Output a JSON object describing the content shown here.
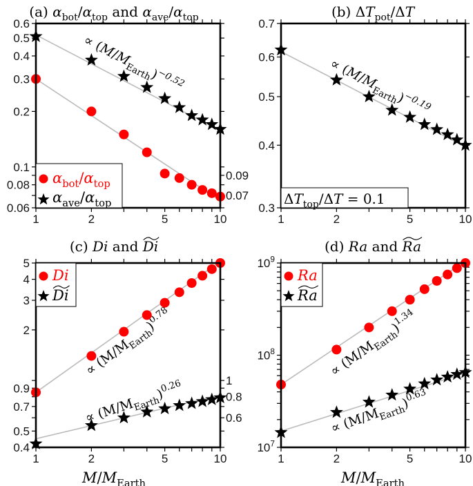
{
  "chart_data": [
    {
      "panel": "a",
      "type": "scatter",
      "xscale": "log",
      "yscale": "log",
      "title": [
        {
          "t": "(a) "
        },
        {
          "t": "α",
          "i": true
        },
        {
          "t": "bot",
          "s": "sub"
        },
        {
          "t": "/"
        },
        {
          "t": "α",
          "i": true
        },
        {
          "t": "top",
          "s": "sub"
        },
        {
          "t": " and "
        },
        {
          "t": "α",
          "i": true
        },
        {
          "t": "ave",
          "s": "sub"
        },
        {
          "t": "/"
        },
        {
          "t": "α",
          "i": true
        },
        {
          "t": "top",
          "s": "sub"
        }
      ],
      "xlabel": [],
      "xlim": [
        1,
        10
      ],
      "ylim": [
        0.06,
        0.6
      ],
      "xticks": [
        1,
        2,
        5,
        10
      ],
      "xtick_labels": [
        "1",
        "2",
        "5",
        "10"
      ],
      "minor_xticks": [
        3,
        4,
        6,
        7,
        8,
        9
      ],
      "yticks": [
        0.06,
        0.07,
        0.08,
        0.09,
        0.1,
        0.2,
        0.3,
        0.4,
        0.5,
        0.6
      ],
      "ytick_labels": [
        "0.06",
        "0.07",
        "0.08",
        "0.09",
        "0.1",
        "0.2",
        "0.3",
        "0.4",
        "0.5",
        "0.6"
      ],
      "minor_yticks": [],
      "x": [
        1,
        2,
        3,
        4,
        5,
        6,
        7,
        8,
        9,
        10
      ],
      "series": [
        {
          "name": [
            {
              "t": "α",
              "i": true
            },
            {
              "t": "bot",
              "s": "sub"
            },
            {
              "t": "/"
            },
            {
              "t": "α",
              "i": true
            },
            {
              "t": "top",
              "s": "sub"
            }
          ],
          "marker": "circle",
          "color": "#ff0000",
          "values": [
            0.3,
            0.2,
            0.15,
            0.12,
            0.092,
            0.087,
            0.08,
            0.075,
            0.072,
            0.069
          ]
        },
        {
          "name": [
            {
              "t": "α",
              "i": true
            },
            {
              "t": "ave",
              "s": "sub"
            },
            {
              "t": "/"
            },
            {
              "t": "α",
              "i": true
            },
            {
              "t": "top",
              "s": "sub"
            }
          ],
          "marker": "star",
          "color": "#000000",
          "values": [
            0.51,
            0.38,
            0.31,
            0.27,
            0.235,
            0.21,
            0.19,
            0.18,
            0.17,
            0.16
          ]
        }
      ],
      "fits": [
        {
          "coef": 0.3,
          "exponent": -0.66,
          "label": []
        },
        {
          "coef": 0.52,
          "exponent": -0.52,
          "label": [
            {
              "t": "∝ ("
            },
            {
              "t": "M",
              "i": true
            },
            {
              "t": "/"
            },
            {
              "t": "M",
              "i": true
            },
            {
              "t": "Earth",
              "s": "sub"
            },
            {
              "t": ")"
            },
            {
              "t": "−0.52",
              "s": "sup",
              "i": true
            }
          ]
        }
      ],
      "legend": {
        "placement": "bottom-left"
      }
    },
    {
      "panel": "b",
      "type": "scatter",
      "xscale": "log",
      "yscale": "log",
      "title": [
        {
          "t": "(b) Δ"
        },
        {
          "t": "T",
          "i": true
        },
        {
          "t": "pot",
          "s": "sub"
        },
        {
          "t": "/Δ"
        },
        {
          "t": "T",
          "i": true
        }
      ],
      "xlabel": [],
      "xlim": [
        1,
        10
      ],
      "ylim": [
        0.3,
        0.7
      ],
      "xticks": [
        1,
        2,
        5,
        10
      ],
      "xtick_labels": [
        "1",
        "2",
        "5",
        "10"
      ],
      "minor_xticks": [
        3,
        4,
        6,
        7,
        8,
        9
      ],
      "yticks": [
        0.3,
        0.4,
        0.5,
        0.6,
        0.7
      ],
      "ytick_labels": [
        "0.3",
        "0.4",
        "0.5",
        "0.6",
        "0.7"
      ],
      "minor_yticks": [],
      "x": [
        1,
        2,
        3,
        4,
        5,
        6,
        7,
        8,
        9,
        10
      ],
      "series": [
        {
          "name": [],
          "marker": "star",
          "color": "#000000",
          "values": [
            0.62,
            0.54,
            0.5,
            0.47,
            0.455,
            0.44,
            0.43,
            0.42,
            0.41,
            0.4
          ]
        }
      ],
      "fits": [
        {
          "coef": 0.615,
          "exponent": -0.19,
          "label": [
            {
              "t": "∝ ("
            },
            {
              "t": "M",
              "i": true
            },
            {
              "t": "/"
            },
            {
              "t": "M",
              "i": true
            },
            {
              "t": "Earth",
              "s": "sub"
            },
            {
              "t": ")"
            },
            {
              "t": "−0.19",
              "s": "sup",
              "i": true
            }
          ]
        }
      ],
      "note": [
        {
          "t": "Δ"
        },
        {
          "t": "T",
          "i": true
        },
        {
          "t": "top",
          "s": "sub"
        },
        {
          "t": "/Δ"
        },
        {
          "t": "T",
          "i": true
        },
        {
          "t": " = 0.1"
        }
      ],
      "legend": {
        "placement": "bottom-left"
      }
    },
    {
      "panel": "c",
      "type": "scatter",
      "xscale": "log",
      "yscale": "log",
      "title": [
        {
          "t": "(c) "
        },
        {
          "t": "Di",
          "i": true
        },
        {
          "t": " and "
        },
        {
          "t": "Di",
          "i": true,
          "tilde": true
        }
      ],
      "xlabel": [
        {
          "t": "M",
          "i": true
        },
        {
          "t": "/"
        },
        {
          "t": "M",
          "i": true
        },
        {
          "t": "Earth",
          "s": "sub"
        }
      ],
      "xlim": [
        1,
        10
      ],
      "ylim": [
        0.4,
        5
      ],
      "xticks": [
        1,
        2,
        5,
        10
      ],
      "xtick_labels": [
        "1",
        "2",
        "5",
        "10"
      ],
      "minor_xticks": [
        3,
        4,
        6,
        7,
        8,
        9
      ],
      "yticks": [
        0.4,
        0.5,
        0.6,
        0.7,
        0.8,
        0.9,
        1,
        2,
        3,
        4,
        5
      ],
      "ytick_labels": [
        "0.4",
        "0.5",
        "0.6",
        "0.7",
        "0.8",
        "0.9",
        "1",
        "2",
        "3",
        "4",
        "5"
      ],
      "minor_yticks": [],
      "x": [
        1,
        2,
        3,
        4,
        5,
        6,
        7,
        8,
        9,
        10
      ],
      "series": [
        {
          "name": [
            {
              "t": "Di",
              "i": true
            }
          ],
          "marker": "circle",
          "color": "#ff0000",
          "values": [
            0.85,
            1.4,
            1.95,
            2.45,
            2.9,
            3.35,
            3.8,
            4.2,
            4.6,
            5.0
          ]
        },
        {
          "name": [
            {
              "t": "Di",
              "i": true,
              "tilde": true
            }
          ],
          "marker": "star",
          "color": "#000000",
          "values": [
            0.42,
            0.54,
            0.6,
            0.65,
            0.68,
            0.71,
            0.73,
            0.75,
            0.77,
            0.79
          ]
        }
      ],
      "fits": [
        {
          "coef": 0.85,
          "exponent": 0.78,
          "label": [
            {
              "t": "∝ (M/M"
            },
            {
              "t": "Earth",
              "s": "sub"
            },
            {
              "t": ")"
            },
            {
              "t": "0.78",
              "s": "sup"
            }
          ]
        },
        {
          "coef": 0.45,
          "exponent": 0.26,
          "label": [
            {
              "t": "∝ (M/M"
            },
            {
              "t": "Earth",
              "s": "sub"
            },
            {
              "t": ")"
            },
            {
              "t": "0.26",
              "s": "sup"
            }
          ]
        }
      ],
      "legend": {
        "placement": "top-left"
      }
    },
    {
      "panel": "d",
      "type": "scatter",
      "xscale": "log",
      "yscale": "log",
      "title": [
        {
          "t": "(d) "
        },
        {
          "t": "Ra",
          "i": true
        },
        {
          "t": " and "
        },
        {
          "t": "Ra",
          "i": true,
          "tilde": true
        }
      ],
      "xlabel": [
        {
          "t": "M",
          "i": true
        },
        {
          "t": "/"
        },
        {
          "t": "M",
          "i": true
        },
        {
          "t": "Earth",
          "s": "sub"
        }
      ],
      "xlim": [
        1,
        10
      ],
      "ylim": [
        10000000.0,
        1000000000.0
      ],
      "xticks": [
        1,
        2,
        5,
        10
      ],
      "xtick_labels": [
        "1",
        "2",
        "5",
        "10"
      ],
      "minor_xticks": [
        3,
        4,
        6,
        7,
        8,
        9
      ],
      "yticks": [
        10000000.0,
        100000000.0,
        1000000000.0
      ],
      "ytick_labels": [
        [
          {
            "t": "10"
          },
          {
            "t": "7",
            "s": "sup"
          }
        ],
        [
          {
            "t": "10"
          },
          {
            "t": "8",
            "s": "sup"
          }
        ],
        [
          {
            "t": "10"
          },
          {
            "t": "9",
            "s": "sup"
          }
        ]
      ],
      "minor_yticks": [
        20000000.0,
        30000000.0,
        40000000.0,
        50000000.0,
        60000000.0,
        70000000.0,
        80000000.0,
        90000000.0,
        200000000.0,
        300000000.0,
        400000000.0,
        500000000.0,
        600000000.0,
        700000000.0,
        800000000.0,
        900000000.0
      ],
      "x": [
        1,
        2,
        3,
        4,
        5,
        6,
        7,
        8,
        9,
        10
      ],
      "series": [
        {
          "name": [
            {
              "t": "Ra",
              "i": true
            }
          ],
          "marker": "circle",
          "color": "#ff0000",
          "values": [
            48000000.0,
            115000000.0,
            200000000.0,
            300000000.0,
            400000000.0,
            520000000.0,
            640000000.0,
            750000000.0,
            880000000.0,
            1000000000.0
          ]
        },
        {
          "name": [
            {
              "t": "Ra",
              "i": true,
              "tilde": true
            }
          ],
          "marker": "star",
          "color": "#000000",
          "values": [
            14500000.0,
            24000000.0,
            31000000.0,
            37000000.0,
            43000000.0,
            49000000.0,
            54000000.0,
            58000000.0,
            62000000.0,
            65000000.0
          ]
        }
      ],
      "fits": [
        {
          "coef": 48000000.0,
          "exponent": 1.34,
          "label": [
            {
              "t": "∝ (M/M"
            },
            {
              "t": "Earth",
              "s": "sub"
            },
            {
              "t": ")"
            },
            {
              "t": "1.34",
              "s": "sup"
            }
          ]
        },
        {
          "coef": 15000000.0,
          "exponent": 0.63,
          "label": [
            {
              "t": "∝ (M/M"
            },
            {
              "t": "Earth",
              "s": "sub"
            },
            {
              "t": ")"
            },
            {
              "t": "0.63",
              "s": "sup"
            }
          ]
        }
      ],
      "legend": {
        "placement": "top-left"
      }
    }
  ],
  "colors": {
    "fit_line": "#bbbbbb",
    "red": "#ff0000",
    "black": "#000000"
  }
}
